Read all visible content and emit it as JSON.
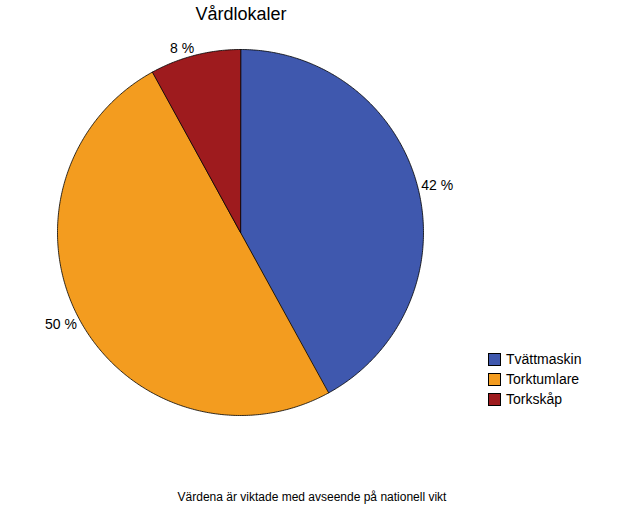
{
  "chart_data": {
    "type": "pie",
    "title": "Vårdlokaler",
    "subtitle": "Värdena är viktade med avseende på nationell vikt",
    "categories": [
      "Tvättmaskin",
      "Torktumlare",
      "Torkskåp"
    ],
    "values": [
      42,
      50,
      8
    ],
    "value_labels": [
      "42 %",
      "50 %",
      "8 %"
    ],
    "colors": [
      "#3f58ae",
      "#f39c1f",
      "#9e1b1e"
    ],
    "data_labels": true,
    "legend": "right"
  }
}
